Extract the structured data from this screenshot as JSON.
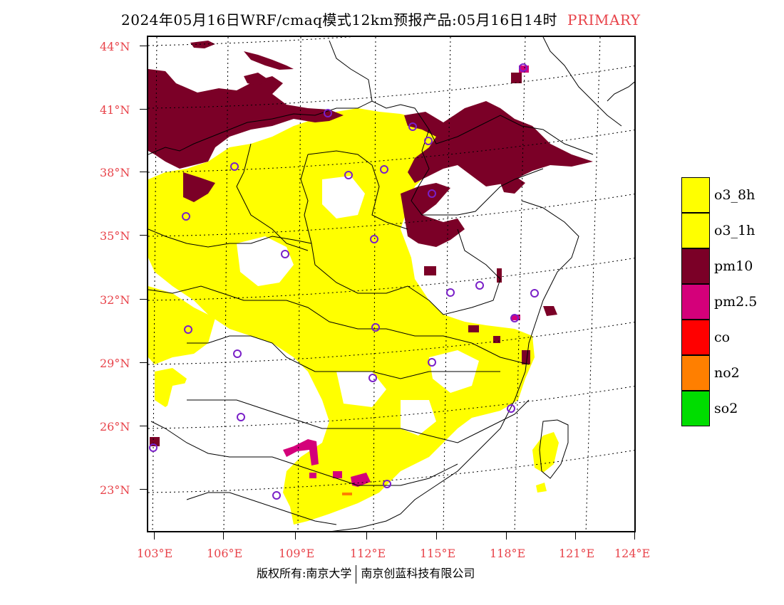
{
  "title": {
    "text": "2024年05月16日WRF/cmaq模式12km预报产品:05月16日14时",
    "tag": "PRIMARY"
  },
  "latitude_labels": [
    "44°N",
    "41°N",
    "38°N",
    "35°N",
    "32°N",
    "29°N",
    "26°N",
    "23°N"
  ],
  "longitude_labels": [
    "103°E",
    "106°E",
    "109°E",
    "112°E",
    "115°E",
    "118°E",
    "121°E",
    "124°E"
  ],
  "legend": [
    {
      "label": "o3_8h",
      "color": "#ffff00"
    },
    {
      "label": "o3_1h",
      "color": "#ffff00"
    },
    {
      "label": "pm10",
      "color": "#7b0027"
    },
    {
      "label": "pm2.5",
      "color": "#d4007a"
    },
    {
      "label": "co",
      "color": "#ff0000"
    },
    {
      "label": "no2",
      "color": "#ff7f00"
    },
    {
      "label": "so2",
      "color": "#00dd00"
    }
  ],
  "footer": {
    "copyright": "版权所有:南京大学",
    "company": "南京创蓝科技有限公司"
  }
}
